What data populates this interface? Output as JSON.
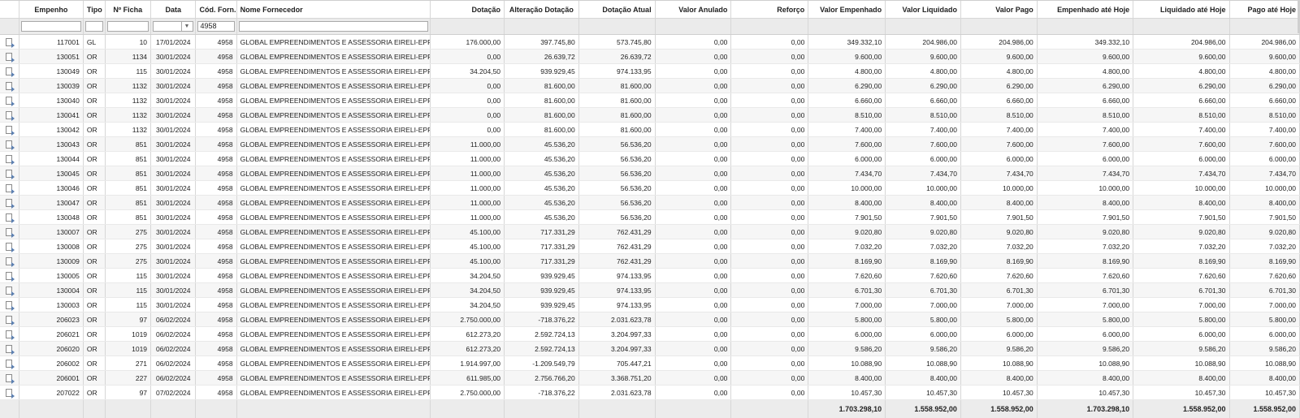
{
  "columns": [
    "Empenho",
    "Tipo",
    "Nº Ficha",
    "Data",
    "Cód. Forn.",
    "Nome Fornecedor",
    "Dotação",
    "Alteração Dotação",
    "Dotação Atual",
    "Valor Anulado",
    "Reforço",
    "Valor Empenhado",
    "Valor Liquidado",
    "Valor Pago",
    "Empenhado até Hoje",
    "Liquidado até Hoje",
    "Pago até Hoje"
  ],
  "filter": {
    "cod_forn": "4958"
  },
  "rows": [
    [
      "117001",
      "GL",
      "10",
      "17/01/2024",
      "4958",
      "GLOBAL EMPREENDIMENTOS E ASSESSORIA EIRELI-EPP",
      "176.000,00",
      "397.745,80",
      "573.745,80",
      "0,00",
      "0,00",
      "349.332,10",
      "204.986,00",
      "204.986,00",
      "349.332,10",
      "204.986,00",
      "204.986,00"
    ],
    [
      "130051",
      "OR",
      "1134",
      "30/01/2024",
      "4958",
      "GLOBAL EMPREENDIMENTOS E ASSESSORIA EIRELI-EPP",
      "0,00",
      "26.639,72",
      "26.639,72",
      "0,00",
      "0,00",
      "9.600,00",
      "9.600,00",
      "9.600,00",
      "9.600,00",
      "9.600,00",
      "9.600,00"
    ],
    [
      "130049",
      "OR",
      "115",
      "30/01/2024",
      "4958",
      "GLOBAL EMPREENDIMENTOS E ASSESSORIA EIRELI-EPP",
      "34.204,50",
      "939.929,45",
      "974.133,95",
      "0,00",
      "0,00",
      "4.800,00",
      "4.800,00",
      "4.800,00",
      "4.800,00",
      "4.800,00",
      "4.800,00"
    ],
    [
      "130039",
      "OR",
      "1132",
      "30/01/2024",
      "4958",
      "GLOBAL EMPREENDIMENTOS E ASSESSORIA EIRELI-EPP",
      "0,00",
      "81.600,00",
      "81.600,00",
      "0,00",
      "0,00",
      "6.290,00",
      "6.290,00",
      "6.290,00",
      "6.290,00",
      "6.290,00",
      "6.290,00"
    ],
    [
      "130040",
      "OR",
      "1132",
      "30/01/2024",
      "4958",
      "GLOBAL EMPREENDIMENTOS E ASSESSORIA EIRELI-EPP",
      "0,00",
      "81.600,00",
      "81.600,00",
      "0,00",
      "0,00",
      "6.660,00",
      "6.660,00",
      "6.660,00",
      "6.660,00",
      "6.660,00",
      "6.660,00"
    ],
    [
      "130041",
      "OR",
      "1132",
      "30/01/2024",
      "4958",
      "GLOBAL EMPREENDIMENTOS E ASSESSORIA EIRELI-EPP",
      "0,00",
      "81.600,00",
      "81.600,00",
      "0,00",
      "0,00",
      "8.510,00",
      "8.510,00",
      "8.510,00",
      "8.510,00",
      "8.510,00",
      "8.510,00"
    ],
    [
      "130042",
      "OR",
      "1132",
      "30/01/2024",
      "4958",
      "GLOBAL EMPREENDIMENTOS E ASSESSORIA EIRELI-EPP",
      "0,00",
      "81.600,00",
      "81.600,00",
      "0,00",
      "0,00",
      "7.400,00",
      "7.400,00",
      "7.400,00",
      "7.400,00",
      "7.400,00",
      "7.400,00"
    ],
    [
      "130043",
      "OR",
      "851",
      "30/01/2024",
      "4958",
      "GLOBAL EMPREENDIMENTOS E ASSESSORIA EIRELI-EPP",
      "11.000,00",
      "45.536,20",
      "56.536,20",
      "0,00",
      "0,00",
      "7.600,00",
      "7.600,00",
      "7.600,00",
      "7.600,00",
      "7.600,00",
      "7.600,00"
    ],
    [
      "130044",
      "OR",
      "851",
      "30/01/2024",
      "4958",
      "GLOBAL EMPREENDIMENTOS E ASSESSORIA EIRELI-EPP",
      "11.000,00",
      "45.536,20",
      "56.536,20",
      "0,00",
      "0,00",
      "6.000,00",
      "6.000,00",
      "6.000,00",
      "6.000,00",
      "6.000,00",
      "6.000,00"
    ],
    [
      "130045",
      "OR",
      "851",
      "30/01/2024",
      "4958",
      "GLOBAL EMPREENDIMENTOS E ASSESSORIA EIRELI-EPP",
      "11.000,00",
      "45.536,20",
      "56.536,20",
      "0,00",
      "0,00",
      "7.434,70",
      "7.434,70",
      "7.434,70",
      "7.434,70",
      "7.434,70",
      "7.434,70"
    ],
    [
      "130046",
      "OR",
      "851",
      "30/01/2024",
      "4958",
      "GLOBAL EMPREENDIMENTOS E ASSESSORIA EIRELI-EPP",
      "11.000,00",
      "45.536,20",
      "56.536,20",
      "0,00",
      "0,00",
      "10.000,00",
      "10.000,00",
      "10.000,00",
      "10.000,00",
      "10.000,00",
      "10.000,00"
    ],
    [
      "130047",
      "OR",
      "851",
      "30/01/2024",
      "4958",
      "GLOBAL EMPREENDIMENTOS E ASSESSORIA EIRELI-EPP",
      "11.000,00",
      "45.536,20",
      "56.536,20",
      "0,00",
      "0,00",
      "8.400,00",
      "8.400,00",
      "8.400,00",
      "8.400,00",
      "8.400,00",
      "8.400,00"
    ],
    [
      "130048",
      "OR",
      "851",
      "30/01/2024",
      "4958",
      "GLOBAL EMPREENDIMENTOS E ASSESSORIA EIRELI-EPP",
      "11.000,00",
      "45.536,20",
      "56.536,20",
      "0,00",
      "0,00",
      "7.901,50",
      "7.901,50",
      "7.901,50",
      "7.901,50",
      "7.901,50",
      "7.901,50"
    ],
    [
      "130007",
      "OR",
      "275",
      "30/01/2024",
      "4958",
      "GLOBAL EMPREENDIMENTOS E ASSESSORIA EIRELI-EPP",
      "45.100,00",
      "717.331,29",
      "762.431,29",
      "0,00",
      "0,00",
      "9.020,80",
      "9.020,80",
      "9.020,80",
      "9.020,80",
      "9.020,80",
      "9.020,80"
    ],
    [
      "130008",
      "OR",
      "275",
      "30/01/2024",
      "4958",
      "GLOBAL EMPREENDIMENTOS E ASSESSORIA EIRELI-EPP",
      "45.100,00",
      "717.331,29",
      "762.431,29",
      "0,00",
      "0,00",
      "7.032,20",
      "7.032,20",
      "7.032,20",
      "7.032,20",
      "7.032,20",
      "7.032,20"
    ],
    [
      "130009",
      "OR",
      "275",
      "30/01/2024",
      "4958",
      "GLOBAL EMPREENDIMENTOS E ASSESSORIA EIRELI-EPP",
      "45.100,00",
      "717.331,29",
      "762.431,29",
      "0,00",
      "0,00",
      "8.169,90",
      "8.169,90",
      "8.169,90",
      "8.169,90",
      "8.169,90",
      "8.169,90"
    ],
    [
      "130005",
      "OR",
      "115",
      "30/01/2024",
      "4958",
      "GLOBAL EMPREENDIMENTOS E ASSESSORIA EIRELI-EPP",
      "34.204,50",
      "939.929,45",
      "974.133,95",
      "0,00",
      "0,00",
      "7.620,60",
      "7.620,60",
      "7.620,60",
      "7.620,60",
      "7.620,60",
      "7.620,60"
    ],
    [
      "130004",
      "OR",
      "115",
      "30/01/2024",
      "4958",
      "GLOBAL EMPREENDIMENTOS E ASSESSORIA EIRELI-EPP",
      "34.204,50",
      "939.929,45",
      "974.133,95",
      "0,00",
      "0,00",
      "6.701,30",
      "6.701,30",
      "6.701,30",
      "6.701,30",
      "6.701,30",
      "6.701,30"
    ],
    [
      "130003",
      "OR",
      "115",
      "30/01/2024",
      "4958",
      "GLOBAL EMPREENDIMENTOS E ASSESSORIA EIRELI-EPP",
      "34.204,50",
      "939.929,45",
      "974.133,95",
      "0,00",
      "0,00",
      "7.000,00",
      "7.000,00",
      "7.000,00",
      "7.000,00",
      "7.000,00",
      "7.000,00"
    ],
    [
      "206023",
      "OR",
      "97",
      "06/02/2024",
      "4958",
      "GLOBAL EMPREENDIMENTOS E ASSESSORIA EIRELI-EPP",
      "2.750.000,00",
      "-718.376,22",
      "2.031.623,78",
      "0,00",
      "0,00",
      "5.800,00",
      "5.800,00",
      "5.800,00",
      "5.800,00",
      "5.800,00",
      "5.800,00"
    ],
    [
      "206021",
      "OR",
      "1019",
      "06/02/2024",
      "4958",
      "GLOBAL EMPREENDIMENTOS E ASSESSORIA EIRELI-EPP",
      "612.273,20",
      "2.592.724,13",
      "3.204.997,33",
      "0,00",
      "0,00",
      "6.000,00",
      "6.000,00",
      "6.000,00",
      "6.000,00",
      "6.000,00",
      "6.000,00"
    ],
    [
      "206020",
      "OR",
      "1019",
      "06/02/2024",
      "4958",
      "GLOBAL EMPREENDIMENTOS E ASSESSORIA EIRELI-EPP",
      "612.273,20",
      "2.592.724,13",
      "3.204.997,33",
      "0,00",
      "0,00",
      "9.586,20",
      "9.586,20",
      "9.586,20",
      "9.586,20",
      "9.586,20",
      "9.586,20"
    ],
    [
      "206002",
      "OR",
      "271",
      "06/02/2024",
      "4958",
      "GLOBAL EMPREENDIMENTOS E ASSESSORIA EIRELI-EPP",
      "1.914.997,00",
      "-1.209.549,79",
      "705.447,21",
      "0,00",
      "0,00",
      "10.088,90",
      "10.088,90",
      "10.088,90",
      "10.088,90",
      "10.088,90",
      "10.088,90"
    ],
    [
      "206001",
      "OR",
      "227",
      "06/02/2024",
      "4958",
      "GLOBAL EMPREENDIMENTOS E ASSESSORIA EIRELI-EPP",
      "611.985,00",
      "2.756.766,20",
      "3.368.751,20",
      "0,00",
      "0,00",
      "8.400,00",
      "8.400,00",
      "8.400,00",
      "8.400,00",
      "8.400,00",
      "8.400,00"
    ],
    [
      "207022",
      "OR",
      "97",
      "07/02/2024",
      "4958",
      "GLOBAL EMPREENDIMENTOS E ASSESSORIA EIRELI-EPP",
      "2.750.000,00",
      "-718.376,22",
      "2.031.623,78",
      "0,00",
      "0,00",
      "10.457,30",
      "10.457,30",
      "10.457,30",
      "10.457,30",
      "10.457,30",
      "10.457,30"
    ]
  ],
  "totals": {
    "valor_empenhado": "1.703.298,10",
    "valor_liquidado": "1.558.952,00",
    "valor_pago": "1.558.952,00",
    "empenhado_ate_hoje": "1.703.298,10",
    "liquidado_ate_hoje": "1.558.952,00",
    "pago_ate_hoje": "1.558.952,00"
  },
  "icons": {
    "row_action": "document-arrow-icon",
    "filter_dropdown": "chevron-down-icon"
  }
}
